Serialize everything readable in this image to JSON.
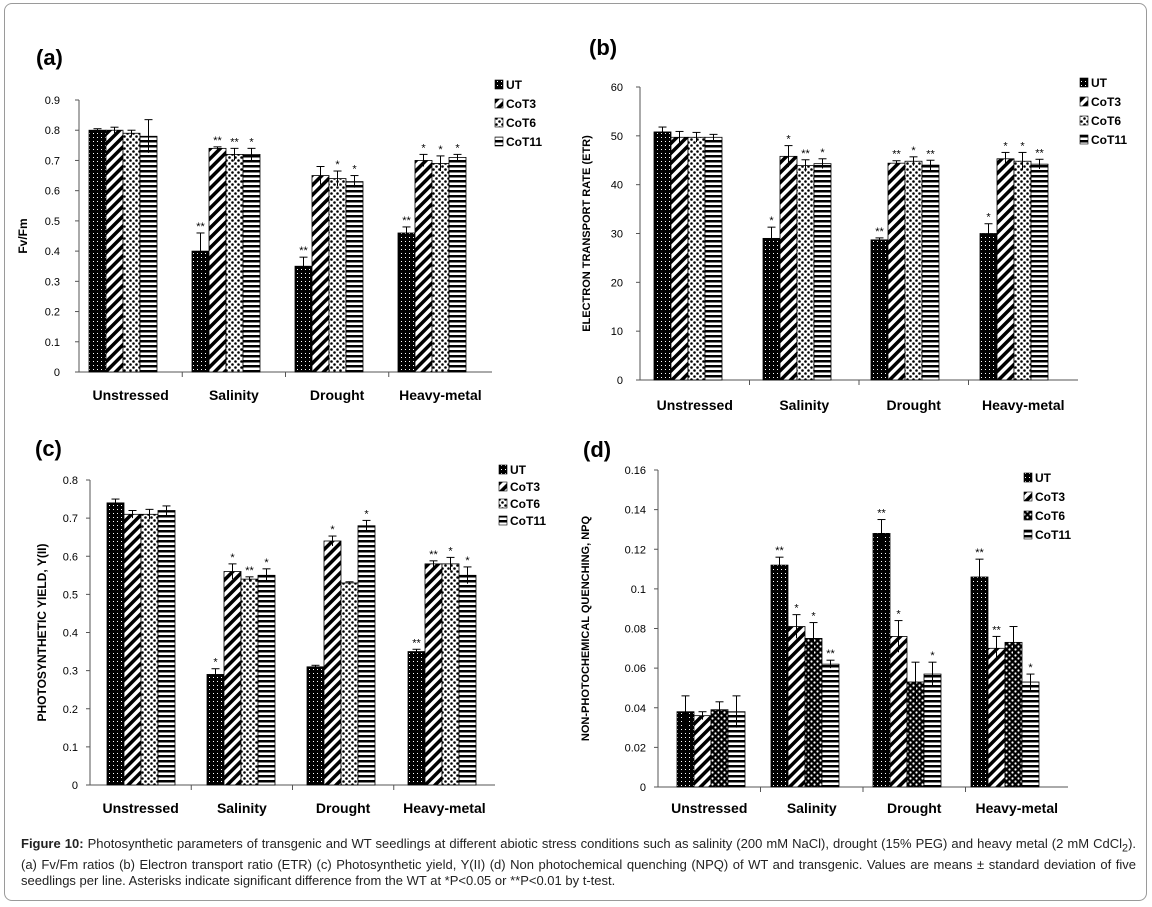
{
  "colors": {
    "bar_stroke": "#000000",
    "axis": "#555555",
    "text": "#000000"
  },
  "chart_data": [
    {
      "panel": "(a)",
      "type": "bar",
      "ylabel": "Fv/Fm",
      "ylim": [
        0,
        0.9
      ],
      "yticks": [
        "0",
        "0.1",
        "0.2",
        "0.3",
        "0.4",
        "0.5",
        "0.6",
        "0.7",
        "0.8",
        "0.9"
      ],
      "categories": [
        "Unstressed",
        "Salinity",
        "Drought",
        "Heavy-metal"
      ],
      "legend": "right",
      "series": [
        {
          "name": "UT",
          "values": [
            0.8,
            0.4,
            0.35,
            0.46
          ],
          "errors": [
            0.005,
            0.06,
            0.03,
            0.02
          ],
          "sig": [
            "",
            "**",
            "**",
            "**"
          ]
        },
        {
          "name": "CoT3",
          "values": [
            0.8,
            0.74,
            0.65,
            0.7
          ],
          "errors": [
            0.01,
            0.005,
            0.03,
            0.02
          ],
          "sig": [
            "",
            "**",
            "",
            "*"
          ]
        },
        {
          "name": "CoT6",
          "values": [
            0.79,
            0.72,
            0.64,
            0.69
          ],
          "errors": [
            0.01,
            0.02,
            0.025,
            0.025
          ],
          "sig": [
            "",
            "**",
            "*",
            "*"
          ]
        },
        {
          "name": "CoT11",
          "values": [
            0.78,
            0.72,
            0.63,
            0.71
          ],
          "errors": [
            0.055,
            0.02,
            0.02,
            0.01
          ],
          "sig": [
            "",
            "*",
            "*",
            "*"
          ]
        }
      ]
    },
    {
      "panel": "(b)",
      "type": "bar",
      "ylabel": "ELECTRON TRANSPORT RATE (ETR)",
      "ylim": [
        0,
        60
      ],
      "yticks": [
        "0",
        "10",
        "20",
        "30",
        "40",
        "50",
        "60"
      ],
      "categories": [
        "Unstressed",
        "Salinity",
        "Drought",
        "Heavy-metal"
      ],
      "legend": "right",
      "series": [
        {
          "name": "UT",
          "values": [
            50.8,
            29.0,
            28.7,
            30.0
          ],
          "errors": [
            1.0,
            2.3,
            0.4,
            2.0
          ],
          "sig": [
            "",
            "*",
            "**",
            "*"
          ]
        },
        {
          "name": "CoT3",
          "values": [
            49.7,
            45.8,
            44.4,
            45.3
          ],
          "errors": [
            1.2,
            2.2,
            0.5,
            1.3
          ],
          "sig": [
            "",
            "*",
            "**",
            "*"
          ]
        },
        {
          "name": "CoT6",
          "values": [
            49.7,
            43.9,
            44.8,
            44.8
          ],
          "errors": [
            1.0,
            1.2,
            0.9,
            1.8
          ],
          "sig": [
            "",
            "**",
            "*",
            "*"
          ]
        },
        {
          "name": "CoT11",
          "values": [
            49.7,
            44.3,
            44.0,
            44.2
          ],
          "errors": [
            0.6,
            1.0,
            1.0,
            1.0
          ],
          "sig": [
            "",
            "*",
            "**",
            "**"
          ]
        }
      ]
    },
    {
      "panel": "(c)",
      "type": "bar",
      "ylabel": "PHOTOSYNTHETIC YIELD, Y(II)",
      "ylim": [
        0,
        0.8
      ],
      "yticks": [
        "0",
        "0.1",
        "0.2",
        "0.3",
        "0.4",
        "0.5",
        "0.6",
        "0.7",
        "0.8"
      ],
      "categories": [
        "Unstressed",
        "Salinity",
        "Drought",
        "Heavy-metal"
      ],
      "legend": "right",
      "series": [
        {
          "name": "UT",
          "values": [
            0.74,
            0.29,
            0.31,
            0.35
          ],
          "errors": [
            0.01,
            0.015,
            0.004,
            0.006
          ],
          "sig": [
            "",
            "*",
            "",
            "**"
          ]
        },
        {
          "name": "CoT3",
          "values": [
            0.71,
            0.56,
            0.64,
            0.58
          ],
          "errors": [
            0.01,
            0.02,
            0.013,
            0.008
          ],
          "sig": [
            "",
            "*",
            "*",
            "**"
          ]
        },
        {
          "name": "CoT6",
          "values": [
            0.71,
            0.54,
            0.53,
            0.58
          ],
          "errors": [
            0.013,
            0.006,
            0.003,
            0.017
          ],
          "sig": [
            "",
            "**",
            "",
            "*"
          ]
        },
        {
          "name": "CoT11",
          "values": [
            0.72,
            0.55,
            0.68,
            0.55
          ],
          "errors": [
            0.012,
            0.017,
            0.014,
            0.022
          ],
          "sig": [
            "",
            "*",
            "*",
            "*"
          ]
        }
      ]
    },
    {
      "panel": "(d)",
      "type": "bar",
      "ylabel": "NON-PHOTOCHEMICAL QUENCHING, NPQ",
      "ylim": [
        0,
        0.16
      ],
      "yticks": [
        "0",
        "0.02",
        "0.04",
        "0.06",
        "0.08",
        "0.1",
        "0.12",
        "0.14",
        "0.16"
      ],
      "categories": [
        "Unstressed",
        "Salinity",
        "Drought",
        "Heavy-metal"
      ],
      "legend": "right",
      "series": [
        {
          "name": "UT",
          "values": [
            0.038,
            0.112,
            0.128,
            0.106
          ],
          "errors": [
            0.008,
            0.004,
            0.007,
            0.009
          ],
          "sig": [
            "",
            "**",
            "**",
            "**"
          ]
        },
        {
          "name": "CoT3",
          "values": [
            0.036,
            0.081,
            0.076,
            0.07
          ],
          "errors": [
            0.002,
            0.006,
            0.008,
            0.006
          ],
          "sig": [
            "",
            "*",
            "*",
            "**"
          ]
        },
        {
          "name": "CoT6",
          "values": [
            0.039,
            0.075,
            0.053,
            0.073
          ],
          "errors": [
            0.004,
            0.008,
            0.01,
            0.008
          ],
          "sig": [
            "",
            "*",
            "",
            ""
          ]
        },
        {
          "name": "CoT11",
          "values": [
            0.038,
            0.062,
            0.057,
            0.053
          ],
          "errors": [
            0.008,
            0.002,
            0.006,
            0.004
          ],
          "sig": [
            "",
            "**",
            "*",
            "*"
          ]
        }
      ]
    }
  ],
  "caption": {
    "label": "Figure 10:",
    "part1": " Photosynthetic parameters of transgenic and WT seedlings at different abiotic stress conditions such as salinity (200 mM NaCl), drought (15% PEG) and heavy metal (2 mM CdCl",
    "subscript": "2",
    "part2": "). (a) Fv/Fm ratios (b) Electron transport ratio (ETR) (c) Photosynthetic yield, Y(II) (d) Non photochemical quenching (NPQ) of WT and transgenic. Values are means ± standard deviation of five seedlings per line. Asterisks indicate significant difference from the WT at *P<0.05 or **P<0.01 by t-test."
  }
}
